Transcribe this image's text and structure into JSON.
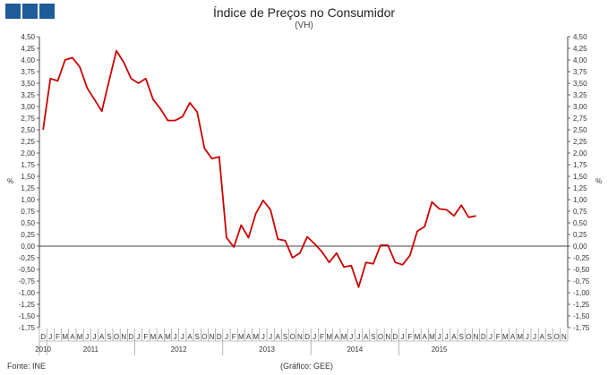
{
  "header": {
    "title": "Índice de Preços no Consumidor",
    "subtitle": "(VH)",
    "logo_color": "#1f5b99"
  },
  "footer": {
    "source": "Fonte: INE",
    "credit": "(Gráfico: GEE)"
  },
  "chart_data": {
    "type": "line",
    "title": "Índice de Preços no Consumidor",
    "subtitle": "(VH)",
    "ylabel_left": "%",
    "ylabel_right": "%",
    "ylim": [
      -1.75,
      4.5
    ],
    "ytick_step": 0.25,
    "dual_y_axis": true,
    "grid": false,
    "zero_line": true,
    "line_color": "#cc0000",
    "month_labels": [
      "D",
      "J",
      "F",
      "M",
      "A",
      "M",
      "J",
      "J",
      "A",
      "S",
      "O",
      "N",
      "D",
      "J",
      "F",
      "M",
      "A",
      "M",
      "J",
      "J",
      "A",
      "S",
      "O",
      "N",
      "D",
      "J",
      "F",
      "M",
      "A",
      "M",
      "J",
      "J",
      "A",
      "S",
      "O",
      "N",
      "D",
      "J",
      "F",
      "M",
      "A",
      "M",
      "J",
      "J",
      "A",
      "S",
      "O",
      "N",
      "D",
      "J",
      "F",
      "M",
      "A",
      "M",
      "J",
      "J",
      "A",
      "S",
      "O",
      "N",
      "D",
      "J",
      "F",
      "M",
      "A",
      "M",
      "J",
      "J",
      "A",
      "S",
      "O",
      "N"
    ],
    "year_labels": [
      {
        "label": "2010",
        "start": 0,
        "end": 0
      },
      {
        "label": "2011",
        "start": 1,
        "end": 12
      },
      {
        "label": "2012",
        "start": 13,
        "end": 24
      },
      {
        "label": "2013",
        "start": 25,
        "end": 36
      },
      {
        "label": "2014",
        "start": 37,
        "end": 48
      },
      {
        "label": "2015",
        "start": 49,
        "end": 59
      }
    ],
    "series": [
      {
        "x": [
          "2010-12",
          "2011-01",
          "2011-02",
          "2011-03",
          "2011-04",
          "2011-05",
          "2011-06",
          "2011-07",
          "2011-08",
          "2011-09",
          "2011-10",
          "2011-11",
          "2011-12",
          "2012-01",
          "2012-02",
          "2012-03",
          "2012-04",
          "2012-05",
          "2012-06",
          "2012-07",
          "2012-08",
          "2012-09",
          "2012-10",
          "2012-11",
          "2012-12",
          "2013-01",
          "2013-02",
          "2013-03",
          "2013-04",
          "2013-05",
          "2013-06",
          "2013-07",
          "2013-08",
          "2013-09",
          "2013-10",
          "2013-11",
          "2013-12",
          "2014-01",
          "2014-02",
          "2014-03",
          "2014-04",
          "2014-05",
          "2014-06",
          "2014-07",
          "2014-08",
          "2014-09",
          "2014-10",
          "2014-11",
          "2014-12",
          "2015-01",
          "2015-02",
          "2015-03",
          "2015-04",
          "2015-05",
          "2015-06",
          "2015-07",
          "2015-08",
          "2015-09",
          "2015-10",
          "2015-11"
        ],
        "values": [
          2.5,
          3.6,
          3.55,
          4.0,
          4.05,
          3.85,
          3.4,
          3.15,
          2.9,
          3.55,
          4.2,
          3.95,
          3.6,
          3.5,
          3.6,
          3.15,
          2.95,
          2.7,
          2.7,
          2.78,
          3.08,
          2.88,
          2.1,
          1.88,
          1.92,
          0.18,
          -0.02,
          0.45,
          0.18,
          0.7,
          0.98,
          0.78,
          0.15,
          0.12,
          -0.25,
          -0.15,
          0.2,
          0.05,
          -0.12,
          -0.35,
          -0.15,
          -0.45,
          -0.42,
          -0.88,
          -0.35,
          -0.38,
          0.02,
          0.02,
          -0.35,
          -0.4,
          -0.2,
          0.32,
          0.42,
          0.95,
          0.8,
          0.78,
          0.65,
          0.88,
          0.62,
          0.65
        ]
      }
    ]
  }
}
